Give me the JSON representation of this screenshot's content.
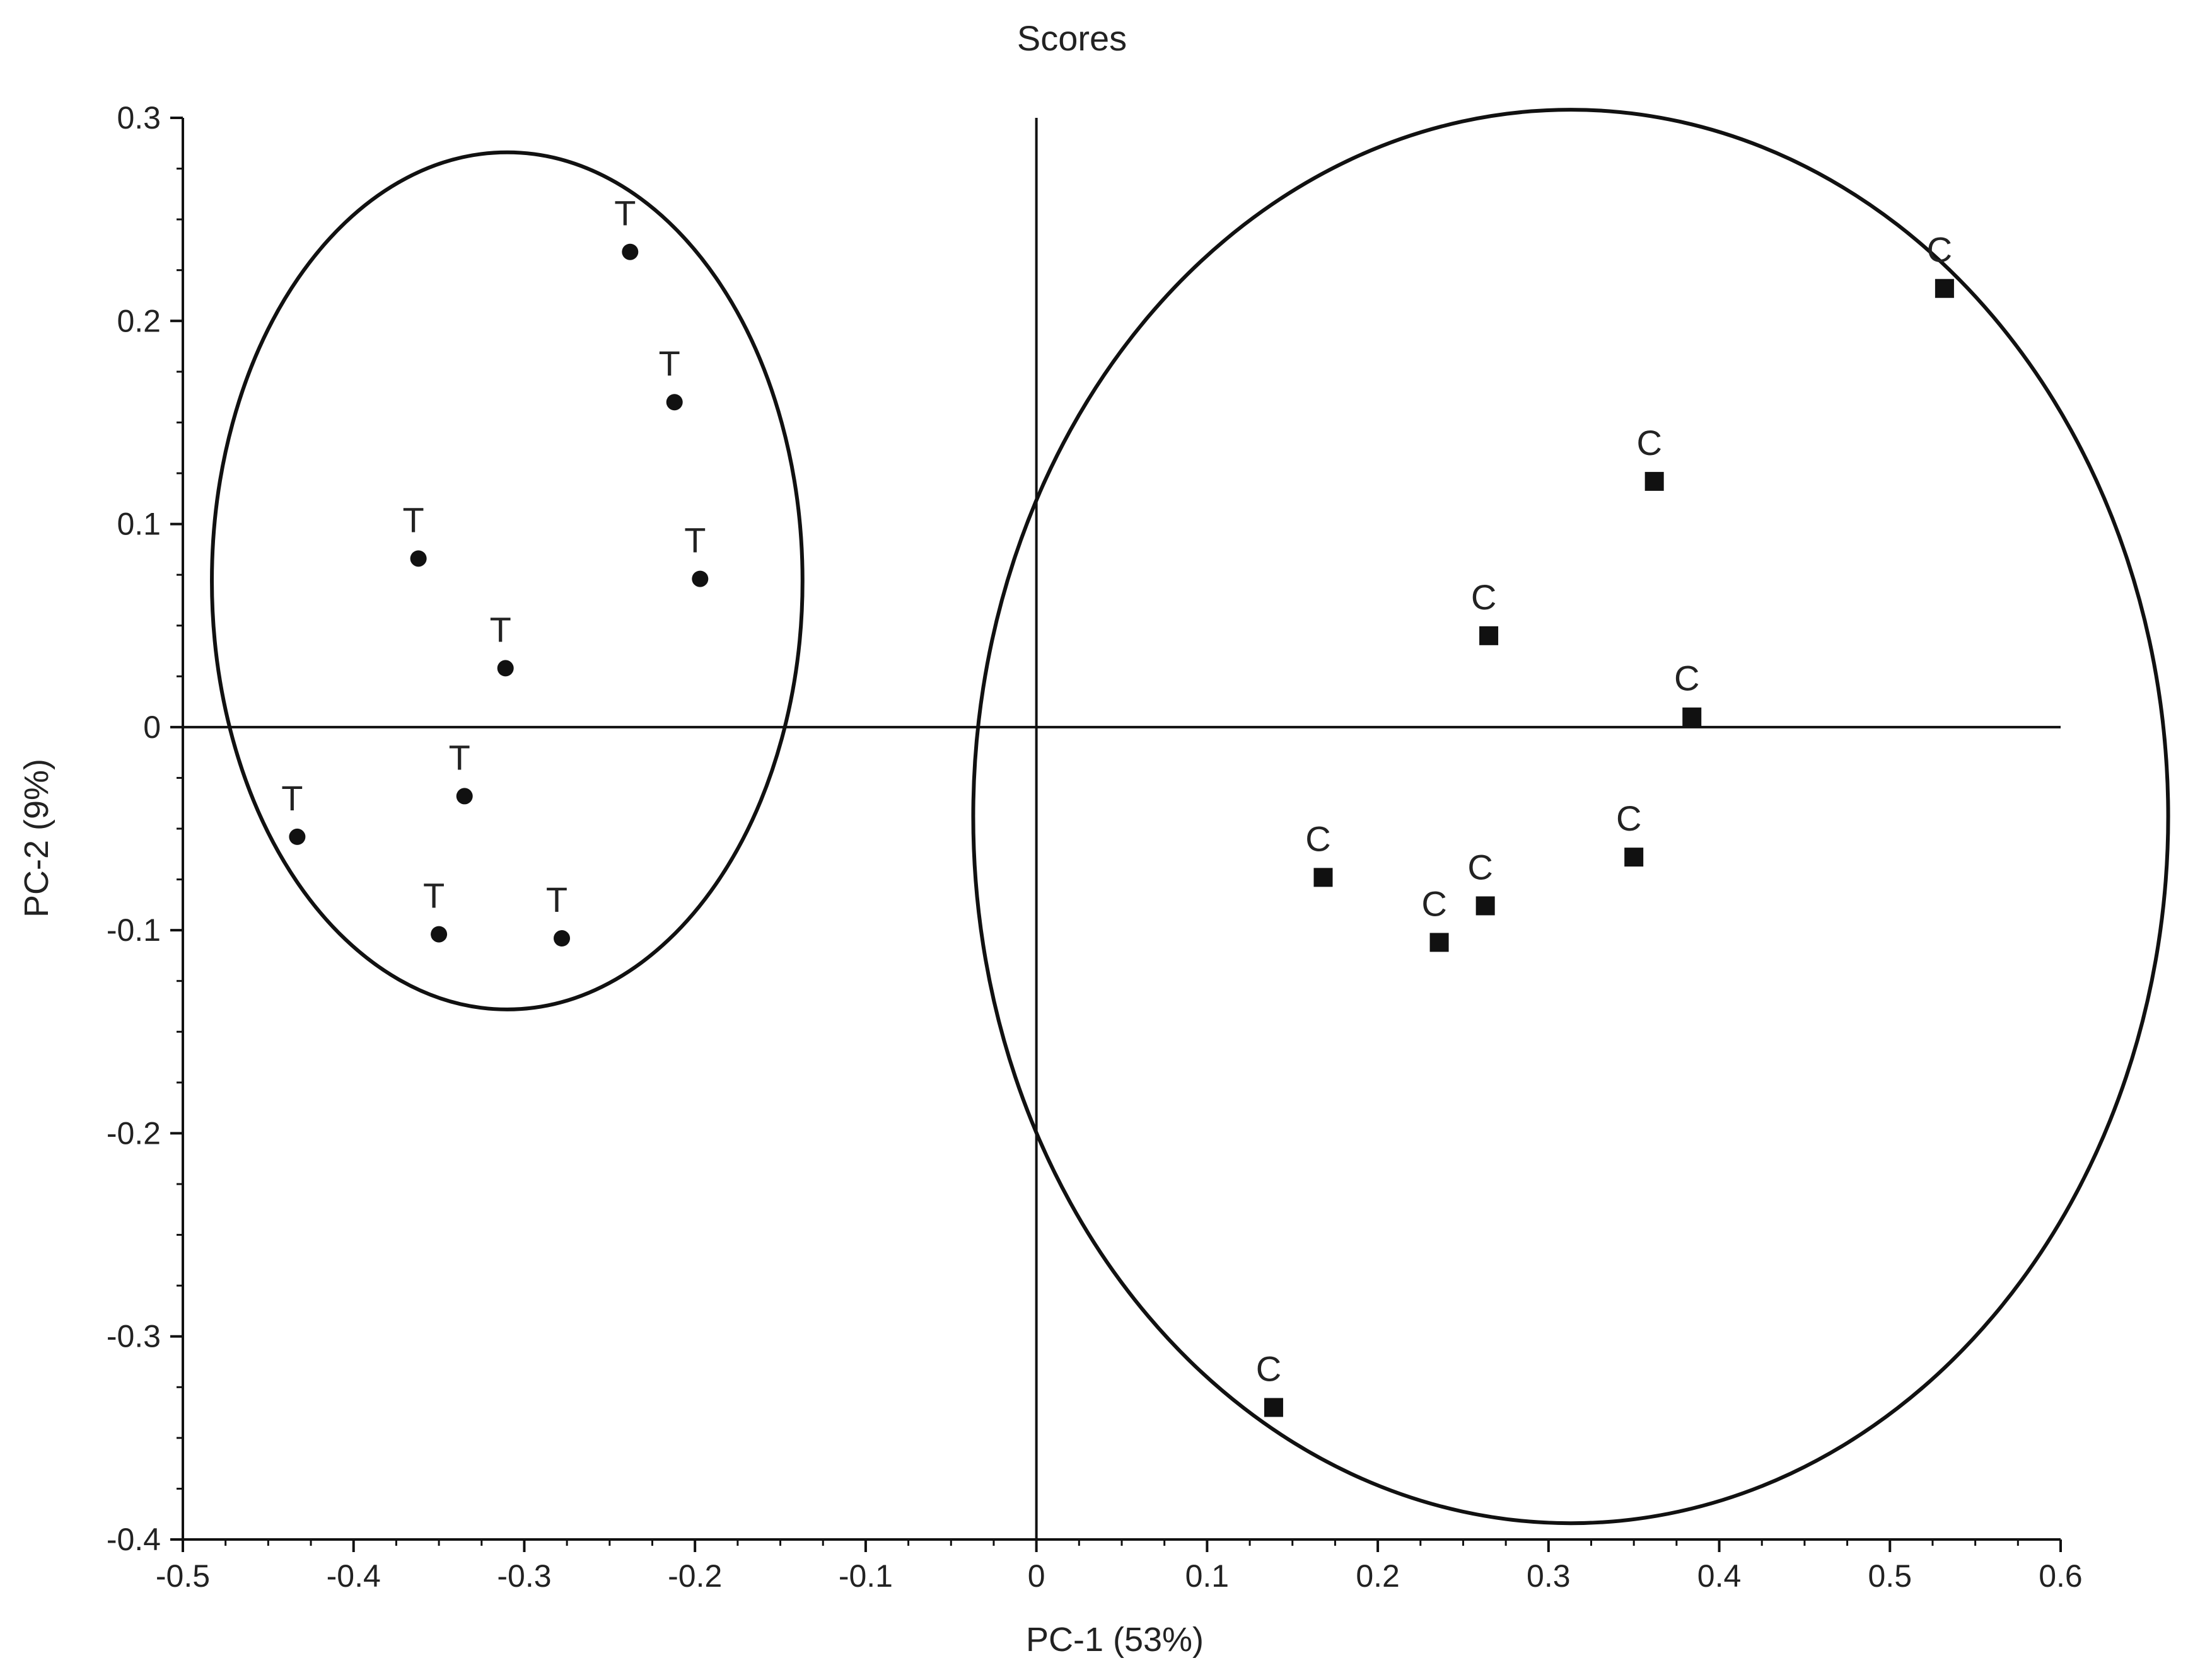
{
  "chart_data": {
    "type": "scatter",
    "title": "Scores",
    "xlabel": "PC-1 (53%)",
    "ylabel": "PC-2 (9%)",
    "xlim": [
      -0.5,
      0.6
    ],
    "ylim": [
      -0.4,
      0.3
    ],
    "x_ticks": [
      "-0.5",
      "-0.4",
      "-0.3",
      "-0.2",
      "-0.1",
      "0",
      "0.1",
      "0.2",
      "0.3",
      "0.4",
      "0.5",
      "0.6"
    ],
    "y_ticks": [
      "0.3",
      "0.2",
      "0.1",
      "0",
      "-0.1",
      "-0.2",
      "-0.3",
      "-0.4"
    ],
    "grid": false,
    "zero_lines": true,
    "series": [
      {
        "marker": "circle",
        "points": [
          {
            "x": -0.238,
            "y": 0.234,
            "label": "T"
          },
          {
            "x": -0.212,
            "y": 0.16,
            "label": "T"
          },
          {
            "x": -0.362,
            "y": 0.083,
            "label": "T"
          },
          {
            "x": -0.197,
            "y": 0.073,
            "label": "T"
          },
          {
            "x": -0.311,
            "y": 0.029,
            "label": "T"
          },
          {
            "x": -0.335,
            "y": -0.034,
            "label": "T"
          },
          {
            "x": -0.433,
            "y": -0.054,
            "label": "T"
          },
          {
            "x": -0.35,
            "y": -0.102,
            "label": "T"
          },
          {
            "x": -0.278,
            "y": -0.104,
            "label": "T"
          }
        ]
      },
      {
        "marker": "square",
        "points": [
          {
            "x": 0.532,
            "y": 0.216,
            "label": "C"
          },
          {
            "x": 0.362,
            "y": 0.121,
            "label": "C"
          },
          {
            "x": 0.265,
            "y": 0.045,
            "label": "C"
          },
          {
            "x": 0.384,
            "y": 0.005,
            "label": "C"
          },
          {
            "x": 0.168,
            "y": -0.074,
            "label": "C"
          },
          {
            "x": 0.35,
            "y": -0.064,
            "label": "C"
          },
          {
            "x": 0.263,
            "y": -0.088,
            "label": "C"
          },
          {
            "x": 0.236,
            "y": -0.106,
            "label": "C"
          },
          {
            "x": 0.139,
            "y": -0.335,
            "label": "C"
          }
        ]
      }
    ],
    "ellipses": [
      {
        "cx": -0.31,
        "cy": 0.072,
        "rx": 0.173,
        "ry": 0.211
      },
      {
        "cx": 0.313,
        "cy": -0.044,
        "rx": 0.35,
        "ry": 0.348
      }
    ]
  },
  "colors": {
    "axis": "#111111",
    "marker": "#111111",
    "text": "#222222",
    "ellipse": "#111111"
  }
}
